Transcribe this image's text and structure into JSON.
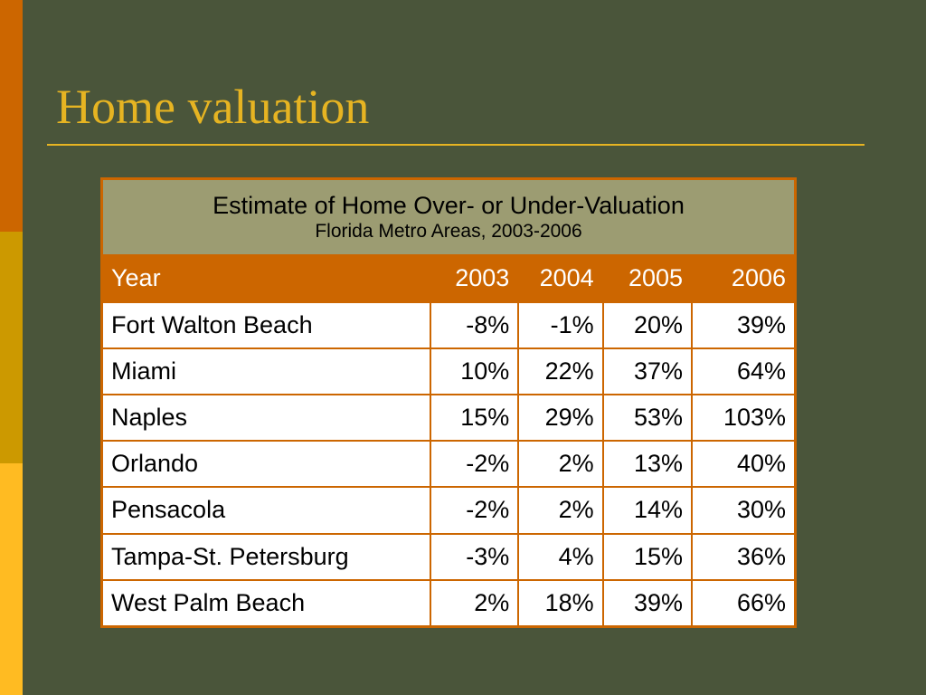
{
  "slide": {
    "title": "Home valuation"
  },
  "table": {
    "caption_main": "Estimate of Home Over- or Under-Valuation",
    "caption_sub": "Florida Metro Areas, 2003-2006",
    "header": [
      "Year",
      "2003",
      "2004",
      "2005",
      "2006"
    ],
    "rows": [
      [
        "Fort Walton Beach",
        "-8%",
        "-1%",
        "20%",
        "39%"
      ],
      [
        "Miami",
        "10%",
        "22%",
        "37%",
        "64%"
      ],
      [
        "Naples",
        "15%",
        "29%",
        "53%",
        "103%"
      ],
      [
        "Orlando",
        "-2%",
        "2%",
        "13%",
        "40%"
      ],
      [
        "Pensacola",
        "-2%",
        "2%",
        "14%",
        "30%"
      ],
      [
        "Tampa-St. Petersburg",
        "-3%",
        "4%",
        "15%",
        "36%"
      ],
      [
        "West Palm Beach",
        "2%",
        "18%",
        "39%",
        "66%"
      ]
    ]
  },
  "colors": {
    "background": "#4a553a",
    "title": "#e6b422",
    "accent_orange": "#cc6600",
    "caption_fill": "#9c9c72",
    "stripe_top": "#cc6600",
    "stripe_middle": "#cc9900",
    "stripe_bottom": "#ffbb22"
  }
}
